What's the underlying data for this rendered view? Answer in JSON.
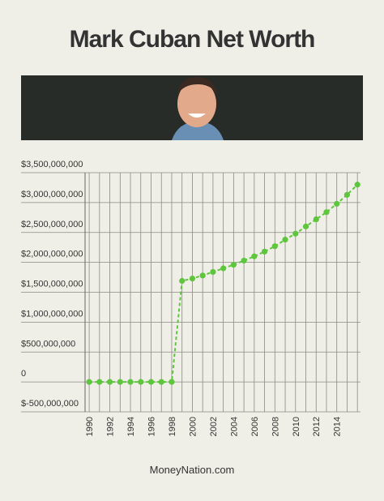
{
  "chart_data": {
    "type": "line",
    "title": "Mark Cuban Net Worth",
    "source": "MoneyNation.com",
    "x": [
      1990,
      1991,
      1992,
      1993,
      1994,
      1995,
      1996,
      1997,
      1998,
      1999,
      2000,
      2001,
      2002,
      2003,
      2004,
      2005,
      2006,
      2007,
      2008,
      2009,
      2010,
      2011,
      2012,
      2013,
      2014,
      2015,
      2016
    ],
    "series": [
      {
        "name": "Net worth",
        "color": "#5dc63c",
        "values": [
          0,
          0,
          0,
          0,
          0,
          0,
          0,
          0,
          0,
          1690000000,
          1730000000,
          1780000000,
          1840000000,
          1900000000,
          1960000000,
          2030000000,
          2100000000,
          2180000000,
          2270000000,
          2380000000,
          2480000000,
          2600000000,
          2720000000,
          2840000000,
          2980000000,
          3130000000,
          3300000000
        ]
      }
    ],
    "xlim": [
      1989.6,
      2016.3
    ],
    "xticks": [
      1990,
      1992,
      1994,
      1996,
      1998,
      2000,
      2002,
      2004,
      2006,
      2008,
      2010,
      2012,
      2014
    ],
    "ylim": [
      -500000000,
      3500000000
    ],
    "yticks": [
      {
        "value": -500000000,
        "label": "$-500,000,000"
      },
      0,
      {
        "value": 500000000,
        "label": "$500,000,000"
      },
      {
        "value": 1000000000,
        "label": "$1,000,000,000"
      },
      {
        "value": 1500000000,
        "label": "$1,500,000,000"
      },
      {
        "value": 2000000000,
        "label": "$2,000,000,000"
      },
      {
        "value": 2500000000,
        "label": "$2,500,000,000"
      },
      {
        "value": 3000000000,
        "label": "$3,000,000,000"
      },
      {
        "value": 3500000000,
        "label": "$3,500,000,000"
      }
    ],
    "grid": true
  }
}
